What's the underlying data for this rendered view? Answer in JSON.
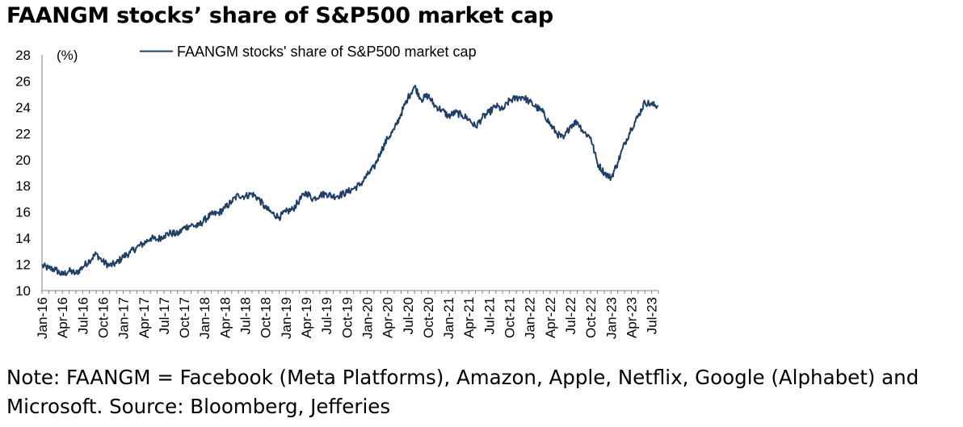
{
  "title": "FAANGM stocks’ share of S&P500 market cap",
  "note": {
    "line1": "Note: FAANGM = Facebook (Meta Platforms), Amazon, Apple, Netflix, Google (Alphabet) and",
    "line2": "Microsoft. Source: Bloomberg, Jefferies"
  },
  "colors": {
    "series": "#1f3f66",
    "axis": "#808080"
  },
  "chart_data": {
    "type": "line",
    "title": "FAANGM stocks’ share of S&P500 market cap",
    "ylabel": "(%)",
    "xlabel": "",
    "ylim": [
      10,
      28
    ],
    "yticks": [
      10,
      12,
      14,
      16,
      18,
      20,
      22,
      24,
      26,
      28
    ],
    "xlim": [
      "2016-01",
      "2023-08"
    ],
    "xticks": [
      "Jan-16",
      "Apr-16",
      "Jul-16",
      "Oct-16",
      "Jan-17",
      "Apr-17",
      "Jul-17",
      "Oct-17",
      "Jan-18",
      "Apr-18",
      "Jul-18",
      "Oct-18",
      "Jan-19",
      "Apr-19",
      "Jul-19",
      "Oct-19",
      "Jan-20",
      "Apr-20",
      "Jul-20",
      "Oct-20",
      "Jan-21",
      "Apr-21",
      "Jul-21",
      "Oct-21",
      "Jan-22",
      "Apr-22",
      "Jul-22",
      "Oct-22",
      "Jan-23",
      "Apr-23",
      "Jul-23"
    ],
    "legend": {
      "position": "top-center"
    },
    "grid": false,
    "series": [
      {
        "name": "FAANGM stocks' share of S&P500 market cap",
        "x": [
          "2016-01",
          "2016-02",
          "2016-03",
          "2016-04",
          "2016-05",
          "2016-06",
          "2016-07",
          "2016-08",
          "2016-09",
          "2016-10",
          "2016-11",
          "2016-12",
          "2017-01",
          "2017-02",
          "2017-03",
          "2017-04",
          "2017-05",
          "2017-06",
          "2017-07",
          "2017-08",
          "2017-09",
          "2017-10",
          "2017-11",
          "2017-12",
          "2018-01",
          "2018-02",
          "2018-03",
          "2018-04",
          "2018-05",
          "2018-06",
          "2018-07",
          "2018-08",
          "2018-09",
          "2018-10",
          "2018-11",
          "2018-12",
          "2019-01",
          "2019-02",
          "2019-03",
          "2019-04",
          "2019-05",
          "2019-06",
          "2019-07",
          "2019-08",
          "2019-09",
          "2019-10",
          "2019-11",
          "2019-12",
          "2020-01",
          "2020-02",
          "2020-03",
          "2020-04",
          "2020-05",
          "2020-06",
          "2020-07",
          "2020-08",
          "2020-09",
          "2020-10",
          "2020-11",
          "2020-12",
          "2021-01",
          "2021-02",
          "2021-03",
          "2021-04",
          "2021-05",
          "2021-06",
          "2021-07",
          "2021-08",
          "2021-09",
          "2021-10",
          "2021-11",
          "2021-12",
          "2022-01",
          "2022-02",
          "2022-03",
          "2022-04",
          "2022-05",
          "2022-06",
          "2022-07",
          "2022-08",
          "2022-09",
          "2022-10",
          "2022-11",
          "2022-12",
          "2023-01",
          "2023-02",
          "2023-03",
          "2023-04",
          "2023-05",
          "2023-06",
          "2023-07",
          "2023-08"
        ],
        "values": [
          11.9,
          11.7,
          11.6,
          11.2,
          11.5,
          11.3,
          11.8,
          12.3,
          12.8,
          12.2,
          11.9,
          12.1,
          12.6,
          12.9,
          13.3,
          13.6,
          14.0,
          13.9,
          14.2,
          14.4,
          14.3,
          14.8,
          15.0,
          14.9,
          15.4,
          15.8,
          15.9,
          16.3,
          16.8,
          17.3,
          17.2,
          17.4,
          17.0,
          16.3,
          15.9,
          15.6,
          16.0,
          16.2,
          16.9,
          17.5,
          17.0,
          17.3,
          17.4,
          17.2,
          17.3,
          17.5,
          17.8,
          18.1,
          18.8,
          19.4,
          20.6,
          21.6,
          22.3,
          23.5,
          24.7,
          25.6,
          24.6,
          24.9,
          24.1,
          23.8,
          23.3,
          23.6,
          23.4,
          23.1,
          22.5,
          23.2,
          23.6,
          24.1,
          23.8,
          24.5,
          24.7,
          24.8,
          24.4,
          24.0,
          23.6,
          22.7,
          22.0,
          21.6,
          22.6,
          22.9,
          22.1,
          21.7,
          19.7,
          19.0,
          18.6,
          19.8,
          21.2,
          22.4,
          23.3,
          24.4,
          24.2,
          24.1
        ]
      }
    ]
  }
}
